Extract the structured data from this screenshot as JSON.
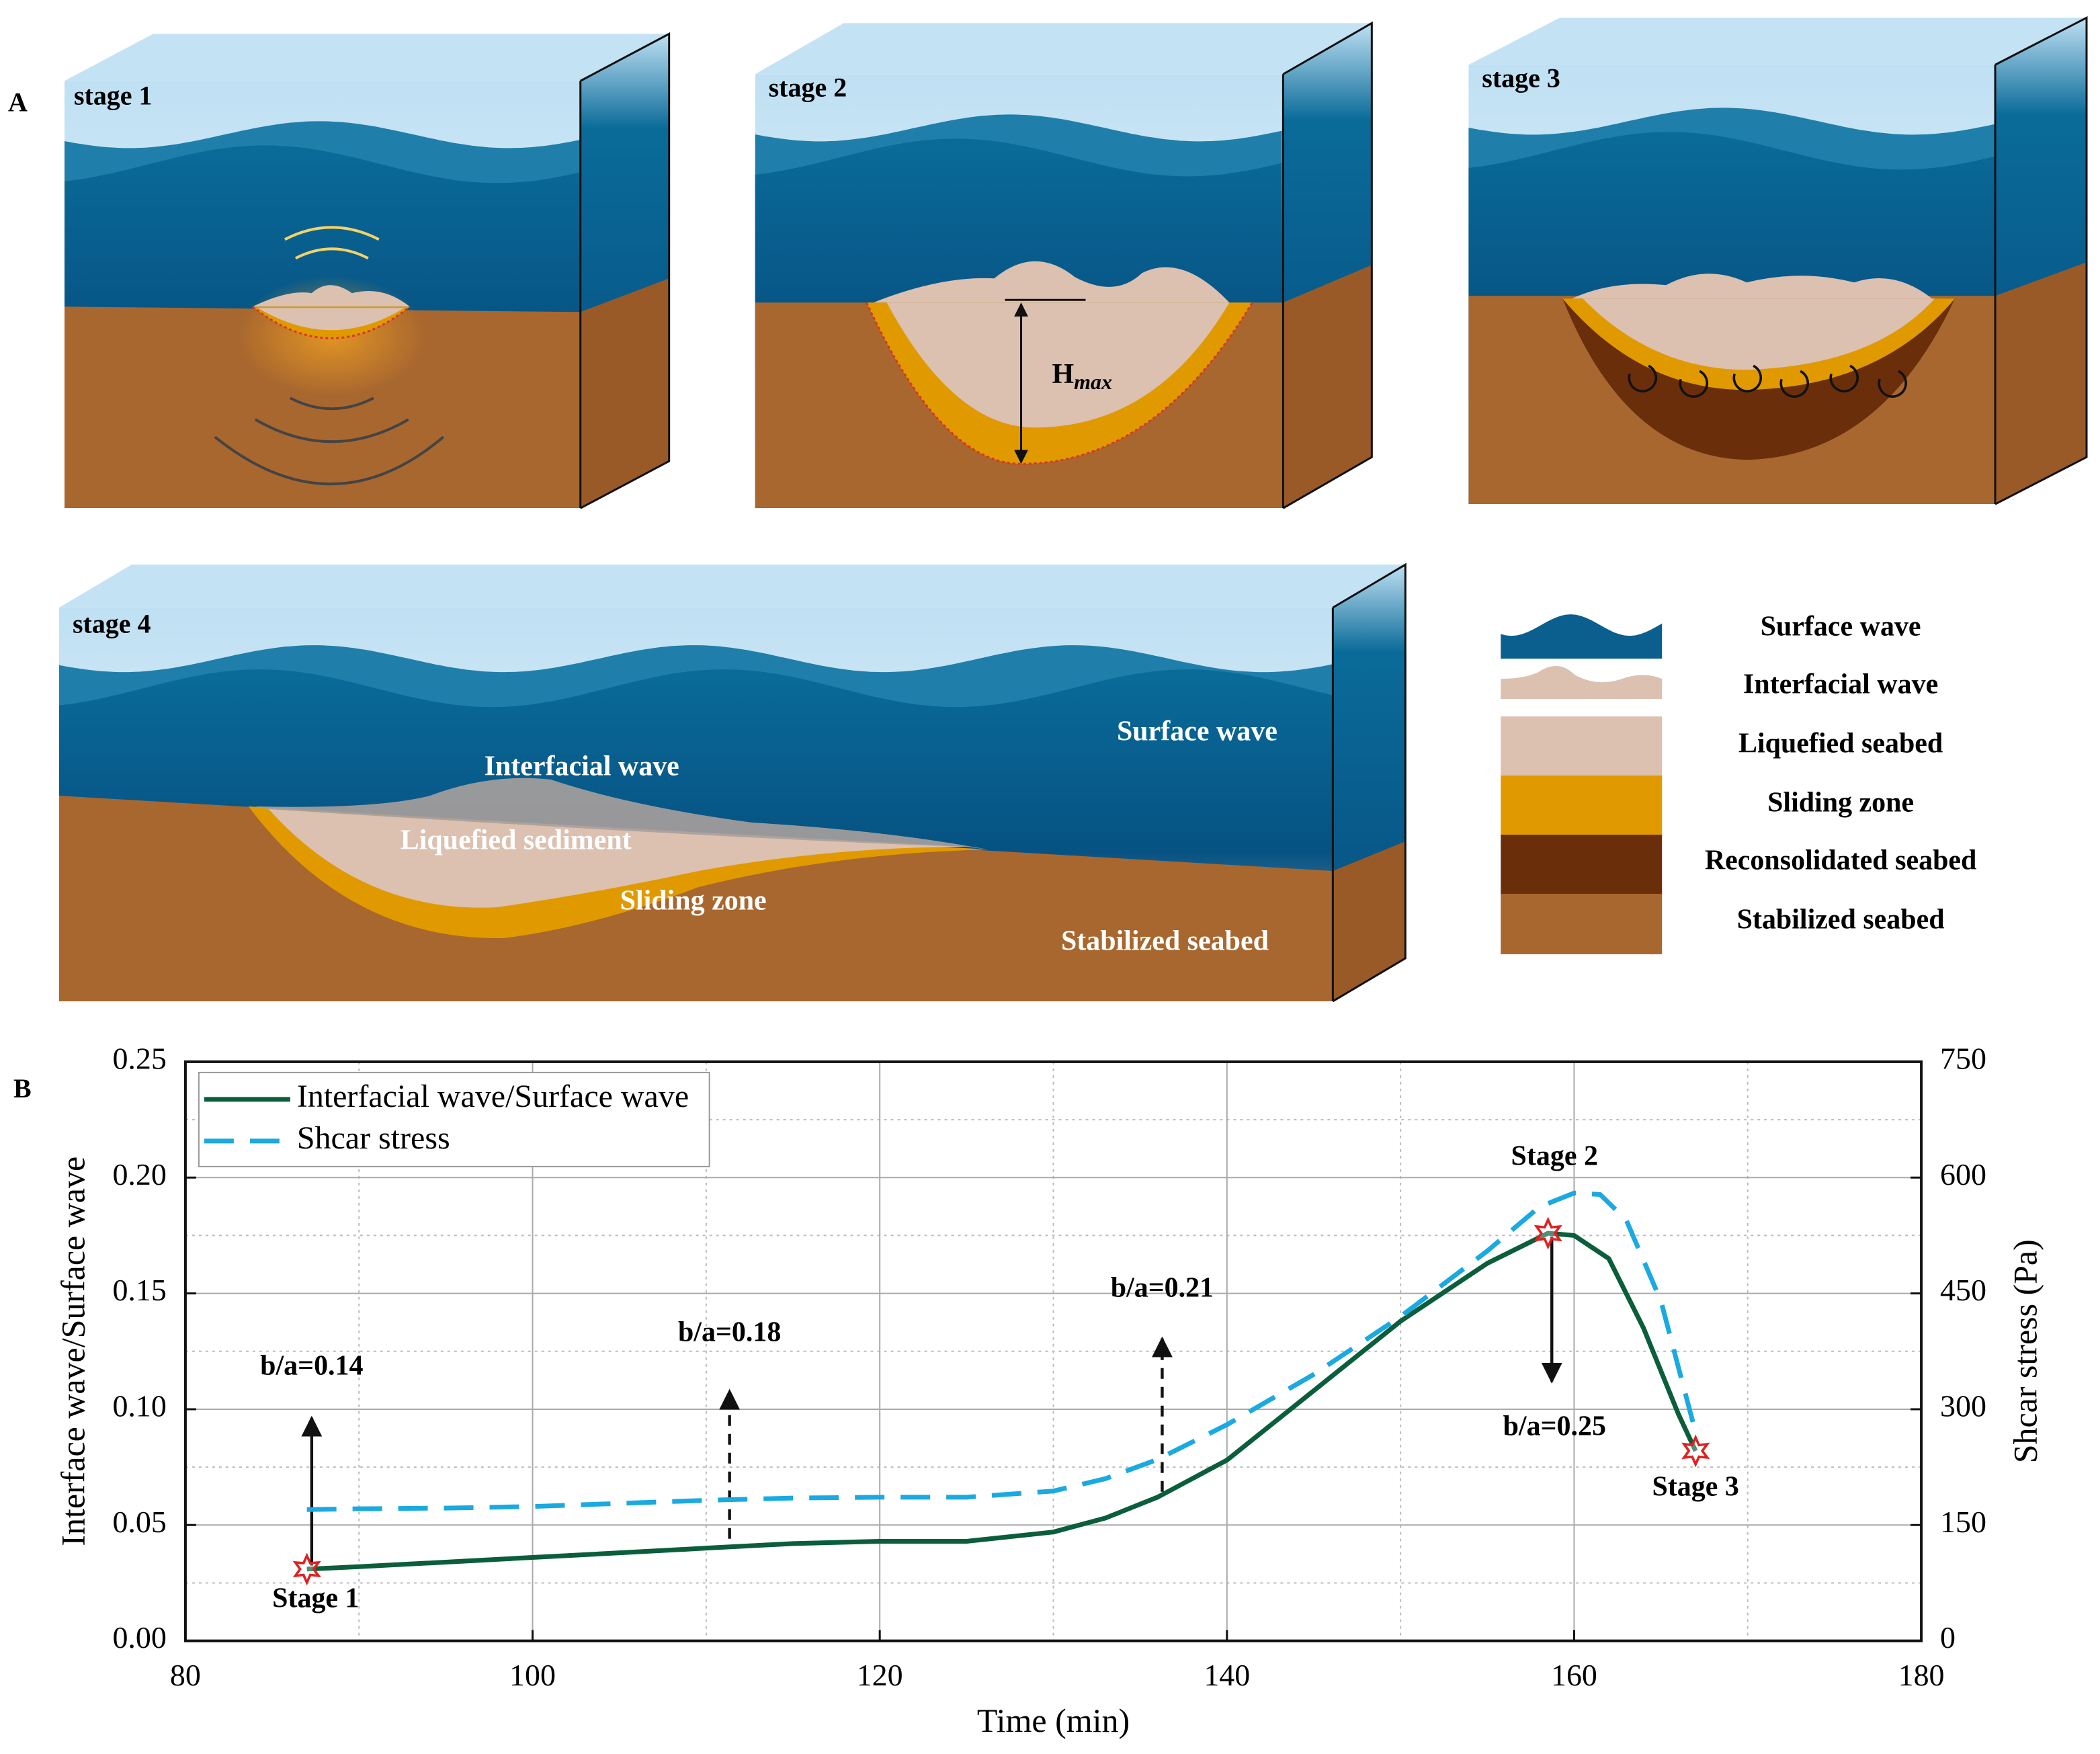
{
  "panel_a": {
    "label": "A",
    "stages": [
      "stage 1",
      "stage 2",
      "stage 3",
      "stage 4"
    ],
    "hmax": {
      "main": "H",
      "sub": "max"
    },
    "stage4_labels": [
      "Surface wave",
      "Interfacial wave",
      "Liquefied sediment",
      "Sliding zone",
      "Stabilized seabed"
    ],
    "legend": [
      "Surface wave",
      "Interfacial wave",
      "Liquefied seabed",
      "Sliding zone",
      "Reconsolidated seabed",
      "Stabilized seabed"
    ]
  },
  "chart_data": {
    "type": "line",
    "panel_label": "B",
    "xlabel": "Time (min)",
    "ylabel": "Interface wave/Surface wave",
    "y2label": "Shcar stress (Pa)",
    "xlim": [
      80,
      180
    ],
    "xticks": [
      80,
      100,
      120,
      140,
      160,
      180
    ],
    "ylim": [
      0,
      0.25
    ],
    "yticks": [
      {
        "value": 0,
        "label": "0.00"
      },
      {
        "value": 0.05,
        "label": "0.05"
      },
      {
        "value": 0.1,
        "label": "0.10"
      },
      {
        "value": 0.15,
        "label": "0.15"
      },
      {
        "value": 0.2,
        "label": "0.20"
      },
      {
        "value": 0.25,
        "label": "0.25"
      }
    ],
    "y2lim": [
      0,
      750
    ],
    "y2ticks": [
      0,
      150,
      300,
      450,
      600,
      750
    ],
    "grid": true,
    "legend": "upper left",
    "series": [
      {
        "name": "Interfacial wave/Surface wave",
        "color": "#0b5e3b",
        "style": "solid",
        "x": [
          87,
          90,
          95,
          100,
          105,
          110,
          115,
          120,
          125,
          130,
          133,
          136,
          140,
          145,
          150,
          155,
          158.5,
          160,
          162,
          164,
          166,
          167
        ],
        "values": [
          0.031,
          0.032,
          0.034,
          0.036,
          0.038,
          0.04,
          0.042,
          0.043,
          0.043,
          0.047,
          0.053,
          0.062,
          0.078,
          0.108,
          0.138,
          0.163,
          0.176,
          0.175,
          0.165,
          0.135,
          0.098,
          0.082
        ]
      },
      {
        "name": "Shcar stress",
        "color": "#1ba9e1",
        "style": "dashed",
        "axis": "y2",
        "x": [
          87,
          90,
          95,
          100,
          105,
          110,
          115,
          120,
          125,
          130,
          133,
          136,
          140,
          145,
          150,
          155,
          158,
          160,
          161.5,
          163,
          165,
          167
        ],
        "values": [
          170,
          171,
          172,
          174,
          178,
          182,
          185,
          186,
          186,
          194,
          210,
          235,
          280,
          345,
          420,
          505,
          562,
          580,
          578,
          545,
          440,
          270
        ]
      }
    ],
    "annotations": [
      "b/a=0.14",
      "b/a=0.18",
      "b/a=0.21",
      "b/a=0.25",
      "Stage 1",
      "Stage 2",
      "Stage 3"
    ]
  }
}
